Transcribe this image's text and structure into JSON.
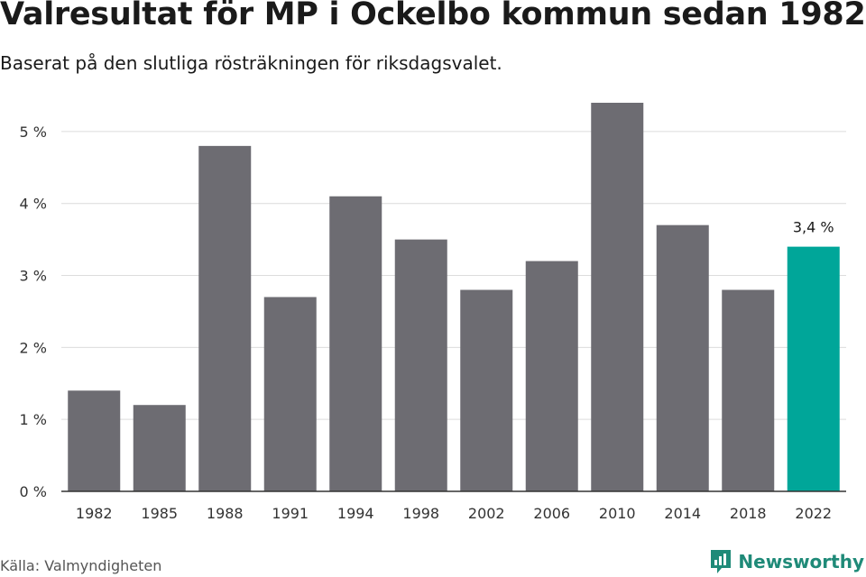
{
  "title": "Valresultat för MP i Ockelbo kommun sedan 1982",
  "subtitle": "Baserat på den slutliga rösträkningen för riksdagsvalet.",
  "source": "Källa: Valmyndigheten",
  "brand": {
    "name": "Newsworthy",
    "icon": "newsworthy-logo-icon"
  },
  "colors": {
    "bar": "#6d6c72",
    "highlight": "#00a699",
    "grid": "#dcdcdc",
    "axis": "#333333"
  },
  "chart_data": {
    "type": "bar",
    "categories": [
      "1982",
      "1985",
      "1988",
      "1991",
      "1994",
      "1998",
      "2002",
      "2006",
      "2010",
      "2014",
      "2018",
      "2022"
    ],
    "values": [
      1.4,
      1.2,
      4.8,
      2.7,
      4.1,
      3.5,
      2.8,
      3.2,
      5.4,
      3.7,
      2.8,
      3.4
    ],
    "ylim": [
      0,
      5.5
    ],
    "yticks": [
      "0 %",
      "1 %",
      "2 %",
      "3 %",
      "4 %",
      "5 %"
    ],
    "highlight_index": 11,
    "data_labels": [
      {
        "category": "2022",
        "text": "3,4 %"
      }
    ],
    "grid": true,
    "xlabel": "",
    "ylabel": ""
  }
}
